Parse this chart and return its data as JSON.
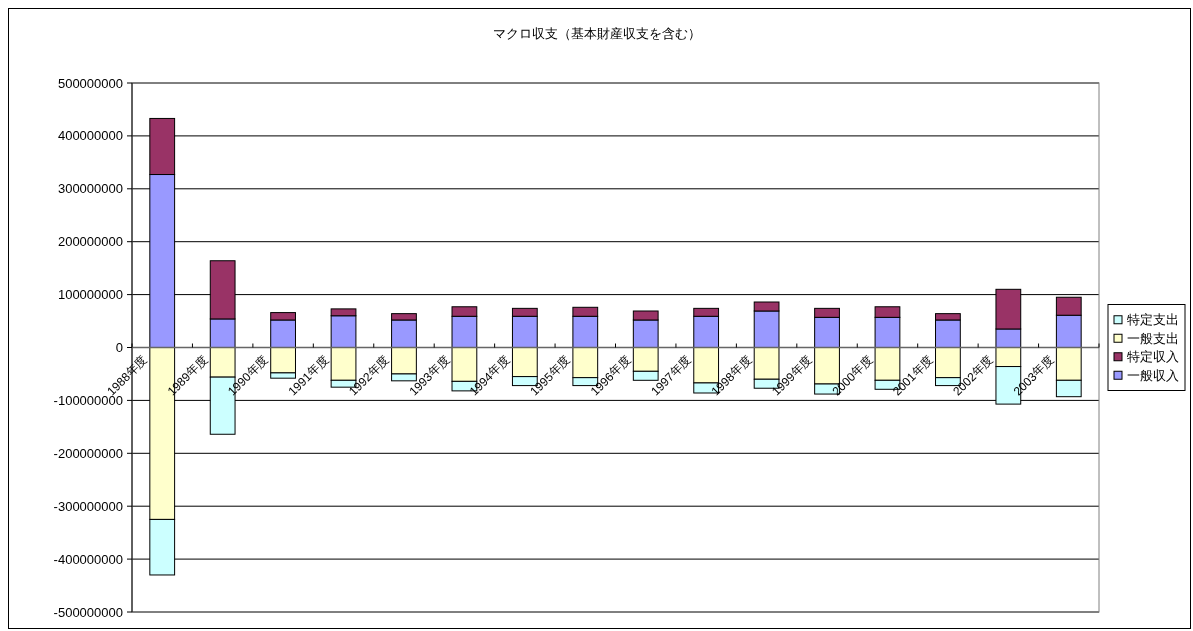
{
  "chart_data": {
    "type": "bar",
    "stacked": true,
    "title": "マクロ収支（基本財産収支を含む）",
    "categories": [
      "1988年度",
      "1989年度",
      "1990年度",
      "1991年度",
      "1992年度",
      "1993年度",
      "1994年度",
      "1995年度",
      "1996年度",
      "1997年度",
      "1998年度",
      "1999年度",
      "2000年度",
      "2001年度",
      "2002年度",
      "2003年度"
    ],
    "series": [
      {
        "name": "一般収入",
        "color": "#9999ff",
        "values": [
          327000000,
          54000000,
          52000000,
          60000000,
          52000000,
          59000000,
          59000000,
          59000000,
          52000000,
          59000000,
          69000000,
          57000000,
          57000000,
          52000000,
          35000000,
          61000000
        ]
      },
      {
        "name": "特定収入",
        "color": "#993366",
        "values": [
          106000000,
          110000000,
          14000000,
          13000000,
          12000000,
          18000000,
          15000000,
          17000000,
          17000000,
          15000000,
          17000000,
          17000000,
          20000000,
          12000000,
          75000000,
          34000000
        ]
      },
      {
        "name": "一般支出",
        "color": "#ffffcc",
        "values": [
          -325000000,
          -56000000,
          -48000000,
          -62000000,
          -50000000,
          -64000000,
          -55000000,
          -57000000,
          -45000000,
          -67000000,
          -60000000,
          -69000000,
          -62000000,
          -57000000,
          -36000000,
          -62000000
        ]
      },
      {
        "name": "特定支出",
        "color": "#ccffff",
        "values": [
          -105000000,
          -108000000,
          -10000000,
          -13000000,
          -13000000,
          -18000000,
          -17000000,
          -15000000,
          -17000000,
          -19000000,
          -17000000,
          -19000000,
          -17000000,
          -15000000,
          -71000000,
          -31000000
        ]
      }
    ],
    "ylim": [
      -500000000,
      500000000
    ],
    "yticks": [
      -500000000,
      -400000000,
      -300000000,
      -200000000,
      -100000000,
      0,
      100000000,
      200000000,
      300000000,
      400000000,
      500000000
    ],
    "grid": "y",
    "legend": "right"
  }
}
